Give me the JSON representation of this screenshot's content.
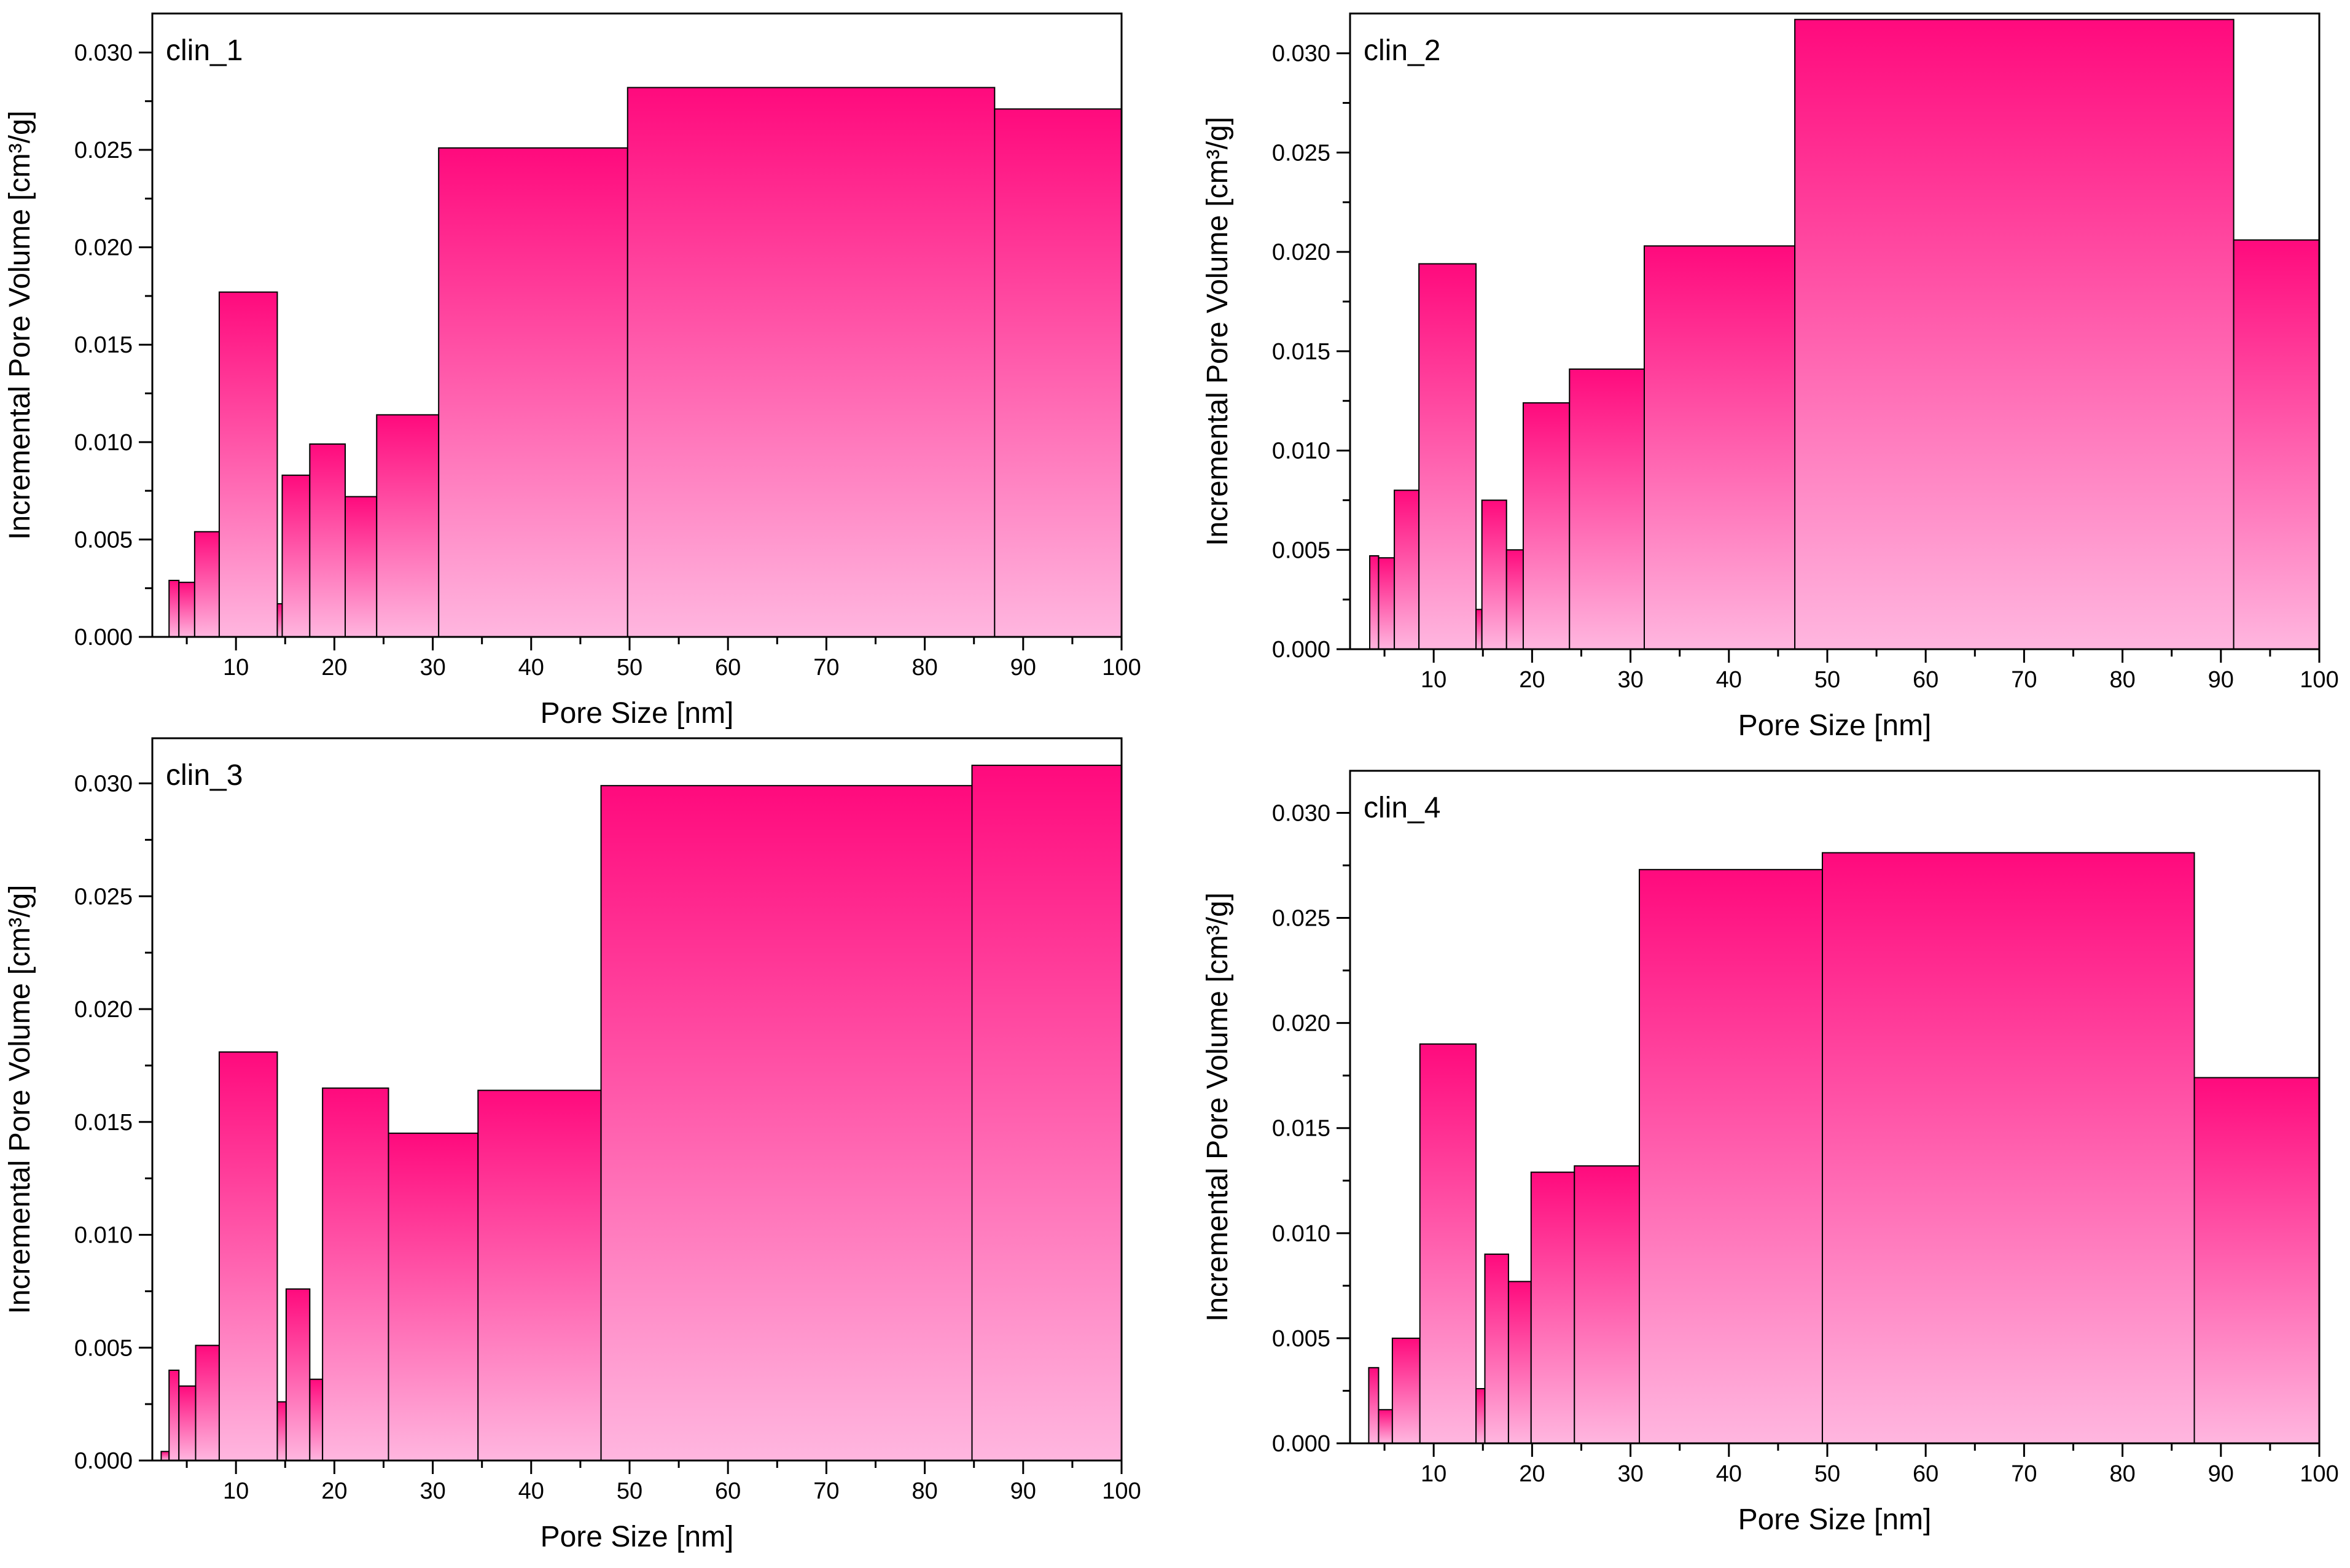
{
  "figure": {
    "bar_colors": {
      "top": "#FF0A7D",
      "bottom": "#FFB6DF",
      "edge": "#000000"
    }
  },
  "chart_data": [
    {
      "type": "bar",
      "title": "clin_1",
      "xlabel": "Pore Size [nm]",
      "ylabel": "Incremental Pore Volume [cm³/g]",
      "xlim": [
        1.5,
        100
      ],
      "ylim": [
        0,
        0.032
      ],
      "xticks": [
        "10",
        "20",
        "30",
        "40",
        "50",
        "60",
        "70",
        "80",
        "90",
        "100"
      ],
      "yticks": [
        "0.000",
        "0.005",
        "0.010",
        "0.015",
        "0.020",
        "0.025",
        "0.030"
      ],
      "bins": [
        {
          "x0": 3.2,
          "x1": 4.2,
          "value": 0.0029
        },
        {
          "x0": 4.2,
          "x1": 5.8,
          "value": 0.0028
        },
        {
          "x0": 5.8,
          "x1": 8.3,
          "value": 0.0054
        },
        {
          "x0": 8.3,
          "x1": 14.2,
          "value": 0.0177
        },
        {
          "x0": 14.2,
          "x1": 14.7,
          "value": 0.0017
        },
        {
          "x0": 14.7,
          "x1": 17.5,
          "value": 0.0083
        },
        {
          "x0": 17.5,
          "x1": 21.1,
          "value": 0.0099
        },
        {
          "x0": 21.1,
          "x1": 24.3,
          "value": 0.0072
        },
        {
          "x0": 24.3,
          "x1": 30.6,
          "value": 0.0114
        },
        {
          "x0": 30.6,
          "x1": 49.8,
          "value": 0.0251
        },
        {
          "x0": 49.8,
          "x1": 87.1,
          "value": 0.0282
        },
        {
          "x0": 87.1,
          "x1": 100,
          "value": 0.0271
        }
      ],
      "grid": false
    },
    {
      "type": "bar",
      "title": "clin_2",
      "xlabel": "Pore Size [nm]",
      "ylabel": "Incremental Pore Volume [cm³/g]",
      "xlim": [
        1.5,
        100
      ],
      "ylim": [
        0,
        0.032
      ],
      "xticks": [
        "10",
        "20",
        "30",
        "40",
        "50",
        "60",
        "70",
        "80",
        "90",
        "100"
      ],
      "yticks": [
        "0.000",
        "0.005",
        "0.010",
        "0.015",
        "0.020",
        "0.025",
        "0.030"
      ],
      "bins": [
        {
          "x0": 3.5,
          "x1": 4.4,
          "value": 0.0047
        },
        {
          "x0": 4.4,
          "x1": 6.0,
          "value": 0.0046
        },
        {
          "x0": 6.0,
          "x1": 8.5,
          "value": 0.008
        },
        {
          "x0": 8.5,
          "x1": 14.3,
          "value": 0.0194
        },
        {
          "x0": 14.3,
          "x1": 14.9,
          "value": 0.002
        },
        {
          "x0": 14.9,
          "x1": 17.4,
          "value": 0.0075
        },
        {
          "x0": 17.4,
          "x1": 19.1,
          "value": 0.005
        },
        {
          "x0": 19.1,
          "x1": 23.8,
          "value": 0.0124
        },
        {
          "x0": 23.8,
          "x1": 31.4,
          "value": 0.0141
        },
        {
          "x0": 31.4,
          "x1": 46.7,
          "value": 0.0203
        },
        {
          "x0": 46.7,
          "x1": 91.3,
          "value": 0.0317
        },
        {
          "x0": 91.3,
          "x1": 100,
          "value": 0.0206
        }
      ],
      "grid": false
    },
    {
      "type": "bar",
      "title": "clin_3",
      "xlabel": "Pore Size [nm]",
      "ylabel": "Incremental Pore Volume [cm³/g]",
      "xlim": [
        1.5,
        100
      ],
      "ylim": [
        0,
        0.032
      ],
      "xticks": [
        "10",
        "20",
        "30",
        "40",
        "50",
        "60",
        "70",
        "80",
        "90",
        "100"
      ],
      "yticks": [
        "0.000",
        "0.005",
        "0.010",
        "0.015",
        "0.020",
        "0.025",
        "0.030"
      ],
      "bins": [
        {
          "x0": 2.4,
          "x1": 3.2,
          "value": 0.0004
        },
        {
          "x0": 3.2,
          "x1": 4.2,
          "value": 0.004
        },
        {
          "x0": 4.2,
          "x1": 5.9,
          "value": 0.0033
        },
        {
          "x0": 5.9,
          "x1": 8.3,
          "value": 0.0051
        },
        {
          "x0": 8.3,
          "x1": 14.2,
          "value": 0.0181
        },
        {
          "x0": 14.2,
          "x1": 15.1,
          "value": 0.0026
        },
        {
          "x0": 15.1,
          "x1": 17.5,
          "value": 0.0076
        },
        {
          "x0": 17.5,
          "x1": 18.8,
          "value": 0.0036
        },
        {
          "x0": 18.8,
          "x1": 25.5,
          "value": 0.0165
        },
        {
          "x0": 25.5,
          "x1": 34.6,
          "value": 0.0145
        },
        {
          "x0": 34.6,
          "x1": 47.1,
          "value": 0.0164
        },
        {
          "x0": 47.1,
          "x1": 84.8,
          "value": 0.0299
        },
        {
          "x0": 84.8,
          "x1": 100,
          "value": 0.0308
        }
      ],
      "grid": false
    },
    {
      "type": "bar",
      "title": "clin_4",
      "xlabel": "Pore Size [nm]",
      "ylabel": "Incremental Pore Volume [cm³/g]",
      "xlim": [
        1.5,
        100
      ],
      "ylim": [
        0,
        0.032
      ],
      "xticks": [
        "10",
        "20",
        "30",
        "40",
        "50",
        "60",
        "70",
        "80",
        "90",
        "100"
      ],
      "yticks": [
        "0.000",
        "0.005",
        "0.010",
        "0.015",
        "0.020",
        "0.025",
        "0.030"
      ],
      "bins": [
        {
          "x0": 3.4,
          "x1": 4.4,
          "value": 0.0036
        },
        {
          "x0": 4.4,
          "x1": 5.8,
          "value": 0.0016
        },
        {
          "x0": 5.8,
          "x1": 8.6,
          "value": 0.005
        },
        {
          "x0": 8.6,
          "x1": 14.3,
          "value": 0.019
        },
        {
          "x0": 14.3,
          "x1": 15.2,
          "value": 0.0026
        },
        {
          "x0": 15.2,
          "x1": 17.6,
          "value": 0.009
        },
        {
          "x0": 17.6,
          "x1": 19.9,
          "value": 0.0077
        },
        {
          "x0": 19.9,
          "x1": 24.3,
          "value": 0.0129
        },
        {
          "x0": 24.3,
          "x1": 30.9,
          "value": 0.0132
        },
        {
          "x0": 30.9,
          "x1": 49.5,
          "value": 0.0273
        },
        {
          "x0": 49.5,
          "x1": 87.3,
          "value": 0.0281
        },
        {
          "x0": 87.3,
          "x1": 100,
          "value": 0.0174
        }
      ],
      "grid": false
    }
  ]
}
